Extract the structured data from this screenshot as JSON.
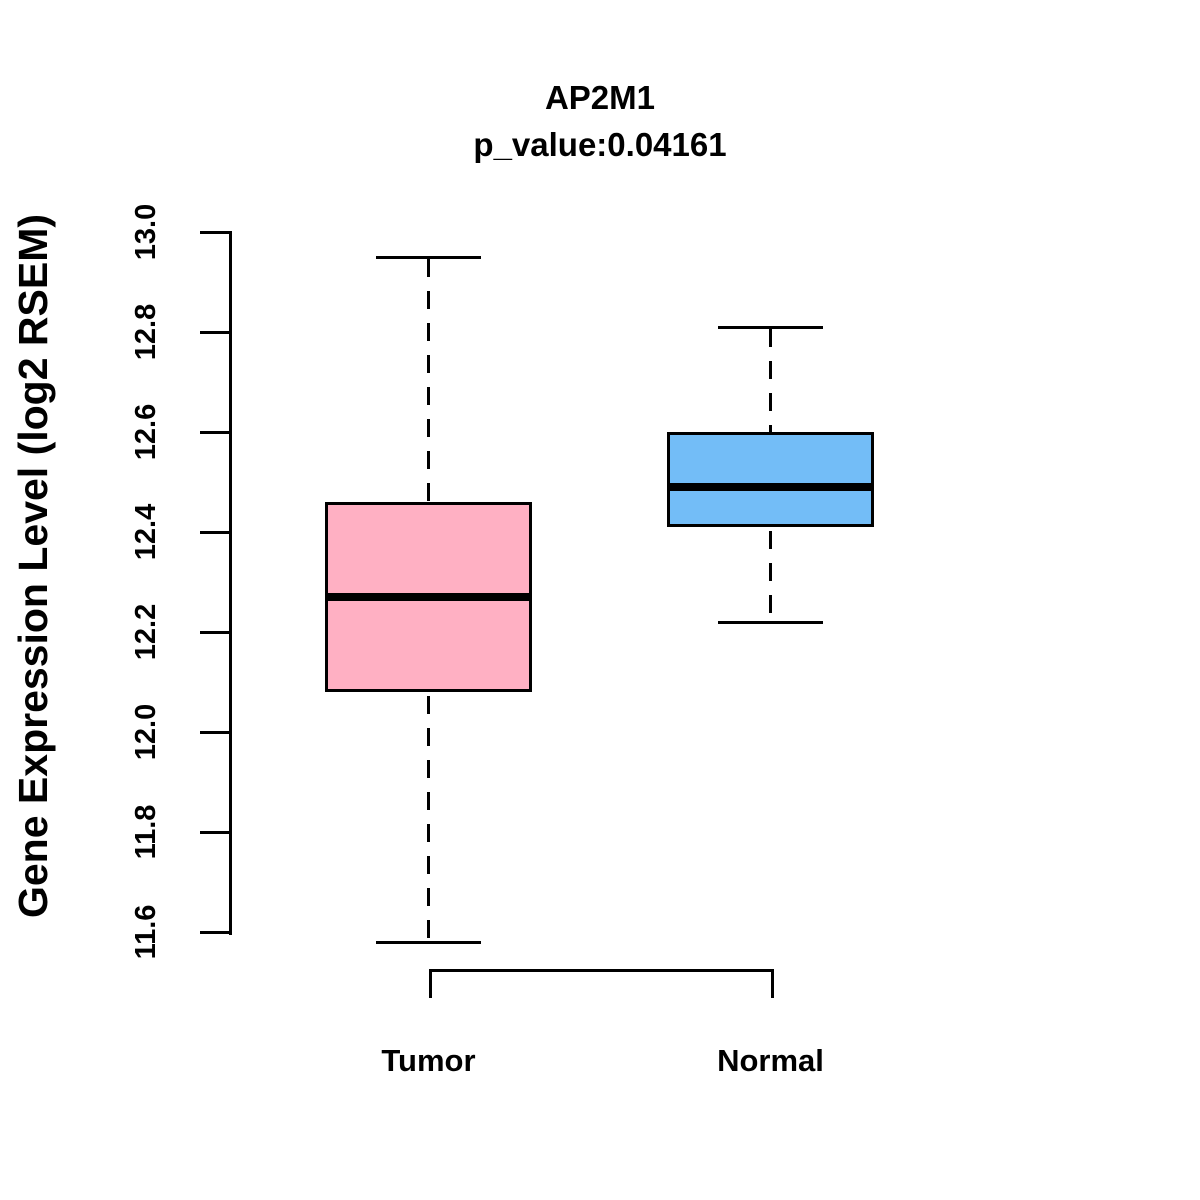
{
  "chart_data": {
    "type": "boxplot",
    "title": "AP2M1",
    "subtitle": "p_value:0.04161",
    "ylabel": "Gene Expression Level (log2 RSEM)",
    "ylim": [
      11.6,
      13.0
    ],
    "yticks": [
      11.6,
      11.8,
      12.0,
      12.2,
      12.4,
      12.6,
      12.8,
      13.0
    ],
    "categories": [
      "Tumor",
      "Normal"
    ],
    "series": [
      {
        "name": "Tumor",
        "color": "#FFB0C3",
        "whisker_low": 11.58,
        "q1": 12.08,
        "median": 12.27,
        "q3": 12.46,
        "whisker_high": 12.95
      },
      {
        "name": "Normal",
        "color": "#73BDF7",
        "whisker_low": 12.22,
        "q1": 12.41,
        "median": 12.49,
        "q3": 12.6,
        "whisker_high": 12.81
      }
    ],
    "line_color": "#000000",
    "grid": false,
    "legend": false,
    "bracket": {
      "connects": [
        "Tumor",
        "Normal"
      ]
    }
  }
}
